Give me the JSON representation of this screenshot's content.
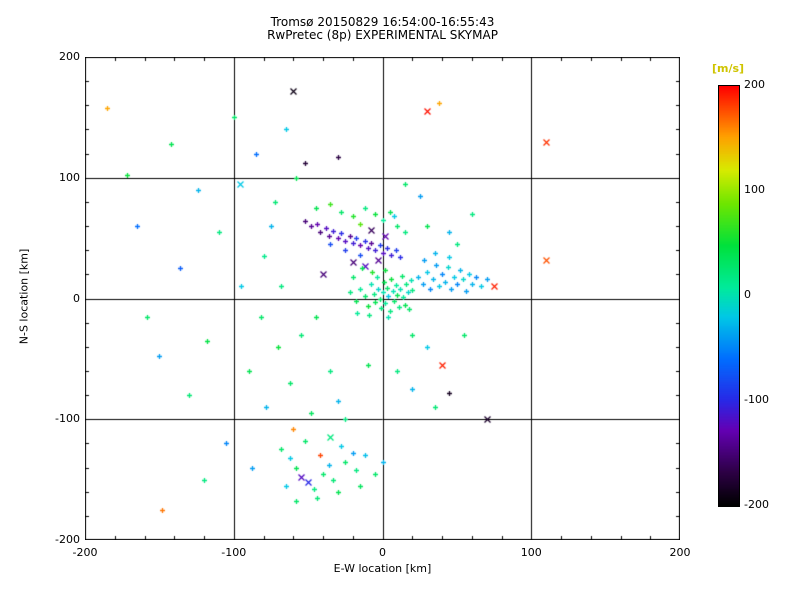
{
  "title_line1": "Tromsø 20150829 16:54:00-16:55:43",
  "title_line2": "RwPretec (8p) EXPERIMENTAL SKYMAP",
  "chart_data": {
    "type": "scatter",
    "title": "Tromsø 20150829 16:54:00-16:55:43 / RwPretec (8p) EXPERIMENTAL SKYMAP",
    "xlabel": "E-W location [km]",
    "ylabel": "N-S location [km]",
    "xlim": [
      -200,
      200
    ],
    "ylim": [
      -200,
      200
    ],
    "xticks": [
      -200,
      -100,
      0,
      100,
      200
    ],
    "yticks": [
      -200,
      -100,
      0,
      100,
      200
    ],
    "grid": true,
    "background": "#ffffff",
    "axis_color": "#000000",
    "colorbar": {
      "label": "[m/s]",
      "label_color": "#cfc400",
      "min": -200,
      "max": 200,
      "ticks": [
        200,
        100,
        0,
        -100,
        -200
      ]
    },
    "marker_codes": {
      "0": "plus",
      "1": "x"
    },
    "points_format": [
      "x_km",
      "y_km",
      "velocity_ms",
      "marker"
    ],
    "points": [
      [
        -52,
        64,
        -150,
        0
      ],
      [
        -48,
        60,
        -140,
        0
      ],
      [
        -44,
        62,
        -130,
        0
      ],
      [
        -42,
        55,
        -150,
        0
      ],
      [
        -38,
        58,
        -120,
        0
      ],
      [
        -36,
        52,
        -140,
        0
      ],
      [
        -33,
        56,
        -110,
        0
      ],
      [
        -30,
        50,
        -130,
        0
      ],
      [
        -28,
        54,
        -100,
        0
      ],
      [
        -25,
        48,
        -120,
        0
      ],
      [
        -22,
        52,
        -140,
        0
      ],
      [
        -20,
        46,
        -110,
        0
      ],
      [
        -18,
        50,
        -90,
        0
      ],
      [
        -15,
        44,
        -130,
        0
      ],
      [
        -12,
        48,
        -100,
        0
      ],
      [
        -10,
        42,
        -120,
        0
      ],
      [
        -8,
        46,
        -140,
        0
      ],
      [
        -5,
        40,
        -110,
        0
      ],
      [
        -2,
        44,
        -90,
        0
      ],
      [
        0,
        38,
        -120,
        0
      ],
      [
        3,
        42,
        -100,
        0
      ],
      [
        6,
        36,
        -110,
        0
      ],
      [
        9,
        40,
        -90,
        0
      ],
      [
        12,
        34,
        -100,
        0
      ],
      [
        -35,
        45,
        -80,
        0
      ],
      [
        -25,
        40,
        -90,
        0
      ],
      [
        -15,
        36,
        -80,
        0
      ],
      [
        -20,
        30,
        -150,
        1
      ],
      [
        -12,
        27,
        -120,
        1
      ],
      [
        -3,
        32,
        -140,
        1
      ],
      [
        -8,
        57,
        -160,
        1
      ],
      [
        2,
        52,
        -130,
        1
      ],
      [
        -40,
        20,
        -150,
        1
      ],
      [
        -28,
        72,
        30,
        0
      ],
      [
        -20,
        68,
        60,
        0
      ],
      [
        -12,
        75,
        20,
        0
      ],
      [
        -5,
        70,
        50,
        0
      ],
      [
        0,
        65,
        10,
        0
      ],
      [
        5,
        72,
        40,
        0
      ],
      [
        -35,
        78,
        70,
        0
      ],
      [
        10,
        60,
        30,
        0
      ],
      [
        -15,
        62,
        80,
        0
      ],
      [
        8,
        68,
        -20,
        0
      ],
      [
        -45,
        75,
        40,
        0
      ],
      [
        15,
        55,
        20,
        0
      ],
      [
        -22,
        5,
        20,
        0
      ],
      [
        -18,
        -2,
        40,
        0
      ],
      [
        -15,
        8,
        10,
        0
      ],
      [
        -12,
        2,
        30,
        0
      ],
      [
        -10,
        -6,
        50,
        0
      ],
      [
        -8,
        12,
        0,
        0
      ],
      [
        -6,
        4,
        20,
        0
      ],
      [
        -5,
        -3,
        40,
        0
      ],
      [
        -4,
        18,
        10,
        0
      ],
      [
        -3,
        8,
        -10,
        0
      ],
      [
        -2,
        0,
        30,
        0
      ],
      [
        -1,
        -8,
        20,
        0
      ],
      [
        0,
        5,
        0,
        0
      ],
      [
        1,
        14,
        40,
        0
      ],
      [
        2,
        -4,
        10,
        0
      ],
      [
        3,
        9,
        30,
        0
      ],
      [
        4,
        2,
        -20,
        0
      ],
      [
        5,
        -10,
        20,
        0
      ],
      [
        6,
        16,
        50,
        0
      ],
      [
        7,
        6,
        0,
        0
      ],
      [
        8,
        -2,
        30,
        0
      ],
      [
        9,
        11,
        10,
        0
      ],
      [
        10,
        3,
        40,
        0
      ],
      [
        11,
        -7,
        20,
        0
      ],
      [
        12,
        8,
        0,
        0
      ],
      [
        13,
        19,
        30,
        0
      ],
      [
        14,
        1,
        10,
        0
      ],
      [
        15,
        -5,
        40,
        0
      ],
      [
        16,
        12,
        20,
        0
      ],
      [
        17,
        5,
        -10,
        0
      ],
      [
        18,
        -9,
        30,
        0
      ],
      [
        19,
        15,
        0,
        0
      ],
      [
        20,
        7,
        20,
        0
      ],
      [
        -7,
        22,
        60,
        0
      ],
      [
        -14,
        25,
        40,
        0
      ],
      [
        2,
        24,
        50,
        0
      ],
      [
        -20,
        18,
        30,
        0
      ],
      [
        -17,
        -12,
        10,
        0
      ],
      [
        -9,
        -14,
        20,
        0
      ],
      [
        4,
        -15,
        0,
        0
      ],
      [
        24,
        18,
        -30,
        0
      ],
      [
        27,
        12,
        -40,
        0
      ],
      [
        30,
        22,
        -20,
        0
      ],
      [
        32,
        8,
        -50,
        0
      ],
      [
        34,
        16,
        -30,
        0
      ],
      [
        36,
        28,
        -40,
        0
      ],
      [
        38,
        10,
        -20,
        0
      ],
      [
        40,
        20,
        -50,
        0
      ],
      [
        42,
        14,
        -30,
        0
      ],
      [
        44,
        26,
        -10,
        0
      ],
      [
        46,
        8,
        -40,
        0
      ],
      [
        48,
        18,
        -20,
        0
      ],
      [
        50,
        12,
        -50,
        0
      ],
      [
        52,
        24,
        -30,
        0
      ],
      [
        54,
        16,
        -10,
        0
      ],
      [
        56,
        6,
        -40,
        0
      ],
      [
        58,
        20,
        -20,
        0
      ],
      [
        60,
        12,
        -30,
        0
      ],
      [
        63,
        18,
        -50,
        0
      ],
      [
        66,
        10,
        -20,
        0
      ],
      [
        70,
        16,
        -40,
        0
      ],
      [
        35,
        38,
        -30,
        0
      ],
      [
        45,
        34,
        -20,
        0
      ],
      [
        28,
        32,
        -40,
        0
      ],
      [
        75,
        10,
        190,
        1
      ],
      [
        30,
        155,
        195,
        1
      ],
      [
        110,
        130,
        185,
        1
      ],
      [
        40,
        -55,
        190,
        1
      ],
      [
        110,
        32,
        175,
        1
      ],
      [
        -60,
        172,
        -190,
        1
      ],
      [
        70,
        -100,
        -180,
        1
      ],
      [
        45,
        -78,
        -185,
        0
      ],
      [
        -52,
        112,
        -175,
        0
      ],
      [
        -30,
        117,
        -170,
        0
      ],
      [
        -185,
        158,
        150,
        0
      ],
      [
        38,
        162,
        150,
        0
      ],
      [
        -148,
        -175,
        165,
        0
      ],
      [
        -60,
        -108,
        160,
        0
      ],
      [
        -172,
        102,
        50,
        0
      ],
      [
        -165,
        60,
        -60,
        0
      ],
      [
        -158,
        -15,
        30,
        0
      ],
      [
        -150,
        -48,
        -40,
        0
      ],
      [
        -142,
        128,
        40,
        0
      ],
      [
        -136,
        25,
        -70,
        0
      ],
      [
        -130,
        -80,
        25,
        0
      ],
      [
        -124,
        90,
        -30,
        0
      ],
      [
        -118,
        -35,
        45,
        0
      ],
      [
        -110,
        55,
        20,
        0
      ],
      [
        -105,
        -120,
        -50,
        0
      ],
      [
        -100,
        150,
        30,
        0
      ],
      [
        -95,
        10,
        -20,
        0
      ],
      [
        -90,
        -60,
        40,
        0
      ],
      [
        -85,
        120,
        -60,
        0
      ],
      [
        -80,
        35,
        15,
        0
      ],
      [
        -78,
        -90,
        -30,
        0
      ],
      [
        -72,
        80,
        25,
        0
      ],
      [
        -70,
        -40,
        50,
        0
      ],
      [
        -65,
        140,
        -20,
        0
      ],
      [
        -62,
        -70,
        30,
        0
      ],
      [
        -58,
        100,
        40,
        0
      ],
      [
        -120,
        -150,
        20,
        0
      ],
      [
        -88,
        -140,
        -40,
        0
      ],
      [
        -35,
        -60,
        20,
        0
      ],
      [
        -30,
        -85,
        -30,
        0
      ],
      [
        -48,
        -95,
        35,
        0
      ],
      [
        -25,
        -100,
        20,
        0
      ],
      [
        -96,
        95,
        -20,
        1
      ],
      [
        -55,
        -30,
        25,
        0
      ],
      [
        -45,
        -15,
        40,
        0
      ],
      [
        -68,
        10,
        20,
        0
      ],
      [
        -75,
        60,
        -30,
        0
      ],
      [
        -82,
        -15,
        30,
        0
      ],
      [
        30,
        60,
        40,
        0
      ],
      [
        45,
        55,
        -30,
        0
      ],
      [
        60,
        70,
        20,
        0
      ],
      [
        25,
        85,
        -40,
        0
      ],
      [
        15,
        95,
        30,
        0
      ],
      [
        50,
        45,
        20,
        0
      ],
      [
        20,
        -30,
        30,
        0
      ],
      [
        10,
        -60,
        20,
        0
      ],
      [
        20,
        -75,
        -30,
        0
      ],
      [
        35,
        -90,
        25,
        0
      ],
      [
        -10,
        -55,
        40,
        0
      ],
      [
        30,
        -40,
        -20,
        0
      ],
      [
        55,
        -30,
        30,
        0
      ],
      [
        -68,
        -125,
        30,
        0
      ],
      [
        -62,
        -132,
        -20,
        0
      ],
      [
        -58,
        -140,
        40,
        0
      ],
      [
        -55,
        -148,
        -120,
        1
      ],
      [
        -50,
        -152,
        -100,
        1
      ],
      [
        -46,
        -158,
        20,
        0
      ],
      [
        -42,
        -130,
        180,
        0
      ],
      [
        -40,
        -145,
        30,
        0
      ],
      [
        -36,
        -138,
        -30,
        0
      ],
      [
        -33,
        -150,
        25,
        0
      ],
      [
        -30,
        -160,
        40,
        0
      ],
      [
        -28,
        -122,
        -20,
        0
      ],
      [
        -25,
        -135,
        30,
        0
      ],
      [
        -20,
        -128,
        -40,
        0
      ],
      [
        -18,
        -142,
        20,
        0
      ],
      [
        -15,
        -155,
        35,
        0
      ],
      [
        -12,
        -130,
        -25,
        0
      ],
      [
        -5,
        -145,
        30,
        0
      ],
      [
        0,
        -135,
        -30,
        0
      ],
      [
        -35,
        -115,
        20,
        1
      ],
      [
        -52,
        -118,
        30,
        0
      ],
      [
        -44,
        -165,
        25,
        0
      ],
      [
        -58,
        -168,
        30,
        0
      ],
      [
        -65,
        -155,
        -20,
        0
      ]
    ]
  }
}
